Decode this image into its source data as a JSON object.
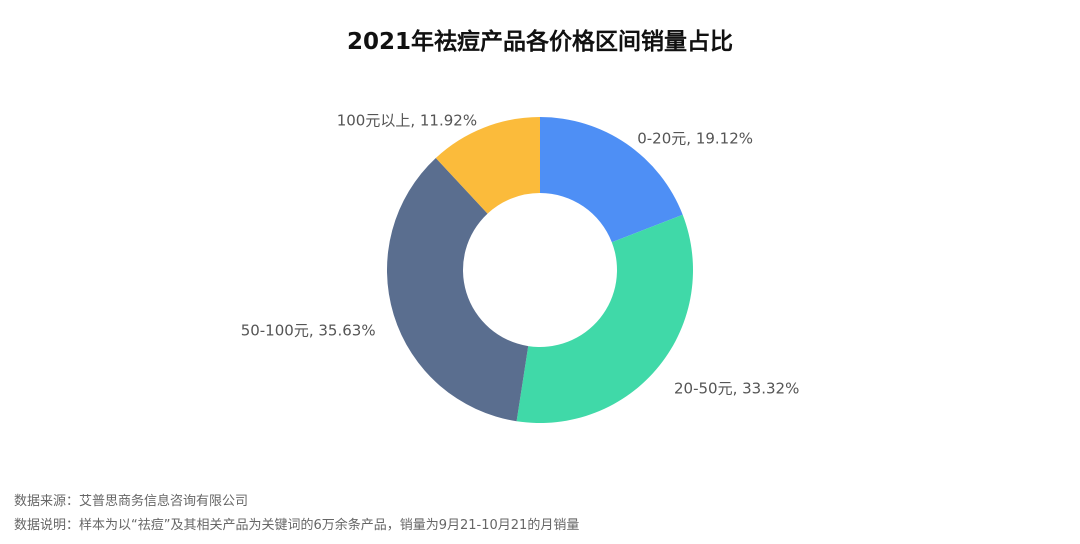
{
  "chart_data": {
    "type": "donut",
    "title": "2021年祛痘产品各价格区间销量占比",
    "categories": [
      "0-20元",
      "20-50元",
      "50-100元",
      "100元以上"
    ],
    "values": [
      19.12,
      33.32,
      35.63,
      11.92
    ],
    "value_labels": [
      "19.12%",
      "33.32%",
      "35.63%",
      "11.92%"
    ],
    "colors": [
      "#4e8ff5",
      "#40d9a8",
      "#5a6e8f",
      "#fbbb3b"
    ],
    "source": "数据来源：艾普思商务信息咨询有限公司",
    "note": "数据说明：样本为以“祛痘”及其相关产品为关键词的6万余条产品，销量为9月21-10月21的月销量"
  }
}
